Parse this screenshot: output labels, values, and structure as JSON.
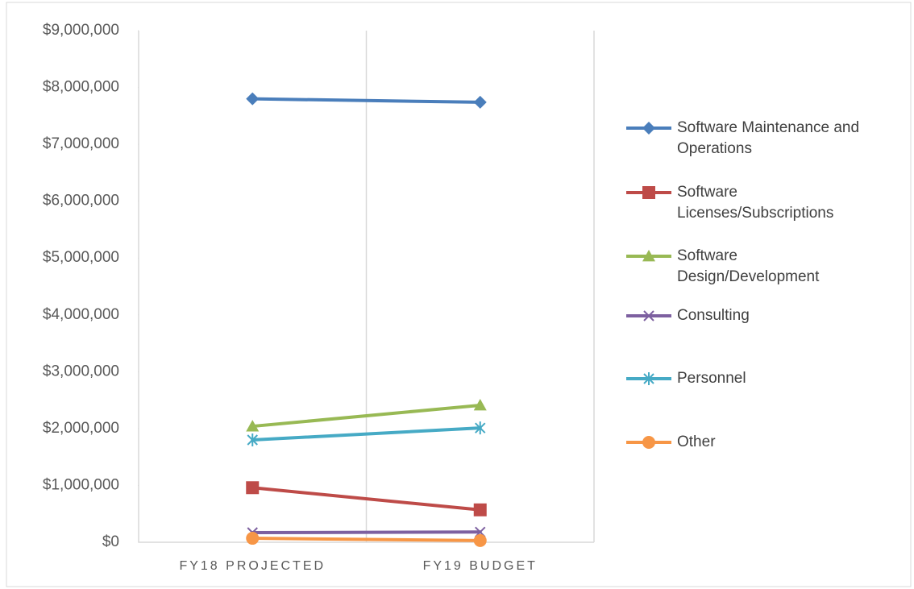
{
  "chart_data": {
    "type": "line",
    "categories": [
      "FY18 PROJECTED",
      "FY19 BUDGET"
    ],
    "series": [
      {
        "name": "Software Maintenance and Operations",
        "color": "#4a7ebb",
        "marker": "diamond",
        "values": [
          7800000,
          7740000
        ]
      },
      {
        "name": "Software Licenses/Subscriptions",
        "color": "#be4b48",
        "marker": "square",
        "values": [
          960000,
          570000
        ]
      },
      {
        "name": "Software Design/Development",
        "color": "#98b954",
        "marker": "triangle",
        "values": [
          2040000,
          2410000
        ]
      },
      {
        "name": "Consulting",
        "color": "#7d60a0",
        "marker": "x",
        "values": [
          170000,
          180000
        ]
      },
      {
        "name": "Personnel",
        "color": "#46aac5",
        "marker": "asterisk",
        "values": [
          1800000,
          2010000
        ]
      },
      {
        "name": "Other",
        "color": "#f79646",
        "marker": "circle",
        "values": [
          70000,
          30000
        ]
      }
    ],
    "ylim": [
      0,
      9000000
    ],
    "yticks": [
      {
        "value": 0,
        "label": "$0"
      },
      {
        "value": 1000000,
        "label": "$1,000,000"
      },
      {
        "value": 2000000,
        "label": "$2,000,000"
      },
      {
        "value": 3000000,
        "label": "$3,000,000"
      },
      {
        "value": 4000000,
        "label": "$4,000,000"
      },
      {
        "value": 5000000,
        "label": "$5,000,000"
      },
      {
        "value": 6000000,
        "label": "$6,000,000"
      },
      {
        "value": 7000000,
        "label": "$7,000,000"
      },
      {
        "value": 8000000,
        "label": "$8,000,000"
      },
      {
        "value": 9000000,
        "label": "$9,000,000"
      }
    ],
    "legend": "right"
  }
}
